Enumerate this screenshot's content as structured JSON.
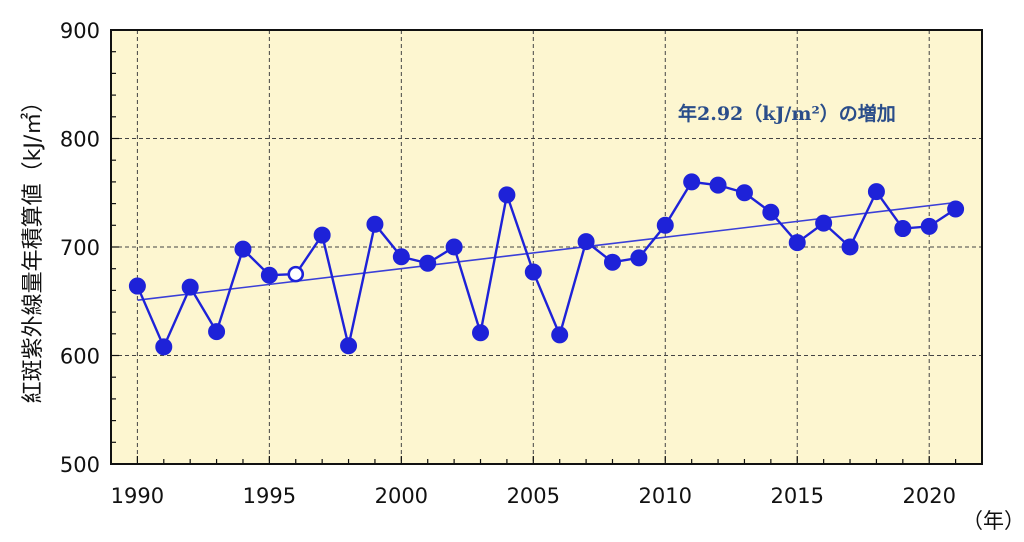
{
  "chart_data": {
    "type": "line",
    "ylabel": "紅斑紫外線量年積算値（kJ/㎡）",
    "xunit": "（年）",
    "annotation": "年2.92（kJ/m²）の増加",
    "xlim": [
      1989,
      2022
    ],
    "ylim": [
      500,
      900
    ],
    "xticks": [
      1990,
      1995,
      2000,
      2005,
      2010,
      2015,
      2020
    ],
    "yticks": [
      500,
      600,
      700,
      800,
      900
    ],
    "grid": true,
    "colors": {
      "plot_background": "#fdf6d0",
      "line": "#1e22d8",
      "trend": "#3a3fd8",
      "annotation": "#2a4d8a",
      "grid": "#444444"
    },
    "series": [
      {
        "x": [
          1990,
          1991,
          1992,
          1993,
          1994,
          1995,
          1996,
          1997,
          1998,
          1999,
          2000,
          2001,
          2002,
          2003,
          2004,
          2005,
          2006,
          2007,
          2008,
          2009,
          2010,
          2011,
          2012,
          2013,
          2014,
          2015,
          2016,
          2017,
          2018,
          2019,
          2020,
          2021
        ],
        "values": [
          664,
          608,
          663,
          622,
          698,
          674,
          675,
          711,
          609,
          721,
          691,
          685,
          700,
          621,
          748,
          677,
          619,
          705,
          686,
          690,
          720,
          760,
          757,
          750,
          732,
          704,
          722,
          700,
          751,
          717,
          719,
          735
        ],
        "open_markers_x": [
          1996
        ]
      }
    ],
    "trend": {
      "x": [
        1990,
        2021
      ],
      "values": [
        651,
        741
      ]
    }
  }
}
